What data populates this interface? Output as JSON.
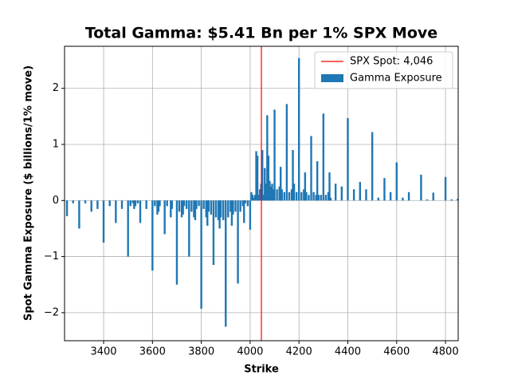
{
  "chart_data": {
    "type": "bar",
    "title": "Total Gamma: $5.41 Bn per 1% SPX Move",
    "x_label": "Strike",
    "y_label": "Spot Gamma Exposure ($ billions/1% move)",
    "x": [
      3250,
      3275,
      3300,
      3325,
      3350,
      3375,
      3400,
      3425,
      3450,
      3475,
      3500,
      3510,
      3520,
      3525,
      3530,
      3540,
      3550,
      3575,
      3600,
      3610,
      3620,
      3625,
      3630,
      3650,
      3660,
      3675,
      3680,
      3700,
      3710,
      3720,
      3725,
      3730,
      3740,
      3750,
      3760,
      3770,
      3775,
      3780,
      3790,
      3800,
      3810,
      3820,
      3825,
      3830,
      3840,
      3850,
      3860,
      3870,
      3875,
      3880,
      3890,
      3900,
      3910,
      3920,
      3925,
      3930,
      3940,
      3950,
      3960,
      3970,
      3975,
      3980,
      3990,
      4000,
      4005,
      4010,
      4015,
      4020,
      4025,
      4030,
      4035,
      4040,
      4045,
      4050,
      4055,
      4060,
      4065,
      4070,
      4075,
      4080,
      4085,
      4090,
      4095,
      4100,
      4110,
      4120,
      4125,
      4130,
      4140,
      4150,
      4160,
      4170,
      4175,
      4180,
      4190,
      4200,
      4210,
      4220,
      4225,
      4230,
      4240,
      4250,
      4260,
      4270,
      4275,
      4280,
      4290,
      4300,
      4310,
      4320,
      4325,
      4330,
      4350,
      4375,
      4400,
      4425,
      4450,
      4475,
      4500,
      4525,
      4550,
      4575,
      4600,
      4625,
      4650,
      4700,
      4725,
      4750,
      4800,
      4825,
      4850
    ],
    "series": [
      {
        "name": "Gamma Exposure",
        "color": "#1f77b4",
        "values": [
          -0.28,
          -0.05,
          -0.5,
          -0.05,
          -0.2,
          -0.15,
          -0.75,
          -0.1,
          -0.4,
          -0.15,
          -1.0,
          -0.1,
          -0.05,
          -0.15,
          -0.1,
          -0.05,
          -0.4,
          -0.15,
          -1.25,
          -0.1,
          -0.25,
          -0.2,
          -0.1,
          -0.6,
          -0.1,
          -0.3,
          -0.15,
          -1.5,
          -0.2,
          -0.3,
          -0.25,
          -0.1,
          -0.15,
          -1.0,
          -0.2,
          -0.3,
          -0.35,
          -0.15,
          -0.1,
          -1.93,
          -0.15,
          -0.3,
          -0.45,
          -0.2,
          -0.25,
          -1.15,
          -0.3,
          -0.35,
          -0.5,
          -0.3,
          -0.35,
          -2.25,
          -0.3,
          -0.2,
          -0.45,
          -0.25,
          -0.2,
          -1.48,
          -0.2,
          -0.1,
          -0.4,
          -0.05,
          -0.1,
          -0.52,
          0.15,
          0.1,
          0.05,
          0.1,
          0.88,
          0.8,
          0.1,
          0.2,
          0.3,
          0.9,
          0.1,
          0.58,
          0.3,
          1.52,
          0.8,
          0.35,
          0.25,
          0.3,
          0.2,
          1.62,
          0.2,
          0.25,
          0.6,
          0.2,
          0.15,
          1.72,
          0.15,
          0.2,
          0.9,
          0.3,
          0.15,
          2.54,
          0.15,
          0.2,
          0.5,
          0.15,
          0.1,
          1.15,
          0.15,
          0.1,
          0.7,
          0.1,
          0.1,
          1.55,
          0.1,
          0.15,
          0.5,
          0.05,
          0.3,
          0.25,
          1.47,
          0.2,
          0.33,
          0.2,
          1.22,
          0.05,
          0.4,
          0.15,
          0.68,
          0.05,
          0.15,
          0.46,
          0.02,
          0.14,
          0.42,
          0.02,
          0.03
        ]
      }
    ],
    "vline": {
      "name": "SPX Spot: 4,046",
      "value": 4046,
      "color": "#ff0000"
    },
    "xlim": [
      3240,
      4852
    ],
    "ylim": [
      -2.5,
      2.75
    ],
    "xticks": [
      3400,
      3600,
      3800,
      4000,
      4200,
      4400,
      4600,
      4800
    ],
    "yticks": [
      {
        "value": -2,
        "label": "−2"
      },
      {
        "value": -1,
        "label": "−1"
      },
      0,
      1,
      2
    ],
    "grid": true,
    "legend": "upper right"
  }
}
